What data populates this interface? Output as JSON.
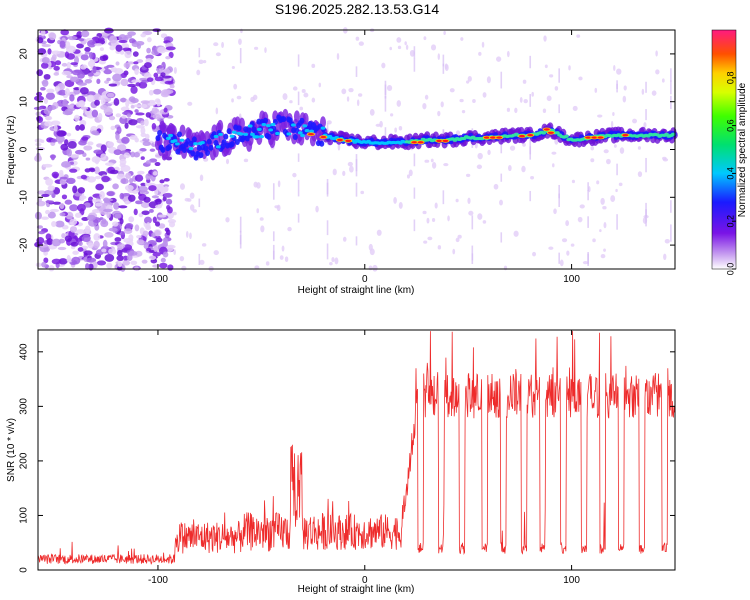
{
  "title": "S196.2025.282.13.53.G14",
  "chart_data": [
    {
      "type": "heatmap",
      "xlabel": "Height of straight line (km)",
      "ylabel": "Frequency (Hz)",
      "xlim": [
        -158,
        150
      ],
      "ylim": [
        -25,
        25
      ],
      "xticks": [
        -100,
        0,
        100
      ],
      "yticks": [
        -20,
        -10,
        0,
        10,
        20
      ],
      "colorbar": {
        "label": "Normalized spectral amplitude",
        "range": [
          0,
          1
        ],
        "ticks": [
          0.0,
          0.2,
          0.4,
          0.6,
          0.8
        ]
      },
      "ridge": {
        "description_points_x": [
          -100,
          -90,
          -80,
          -70,
          -60,
          -50,
          -40,
          -30,
          -20,
          -10,
          0,
          10,
          20,
          30,
          40,
          50,
          60,
          70,
          80,
          90,
          100,
          110,
          120,
          130,
          140,
          150
        ],
        "description_points_y": [
          2,
          1.5,
          0,
          2,
          3,
          4,
          5,
          4,
          3,
          2,
          1.5,
          1.5,
          1.5,
          2,
          2,
          2.5,
          2.5,
          3,
          3,
          4,
          2,
          2.5,
          3,
          3,
          3,
          3
        ]
      },
      "grid": false
    },
    {
      "type": "line",
      "xlabel": "Height of straight line (km)",
      "ylabel": "SNR (10 * v/v)",
      "xlim": [
        -158,
        150
      ],
      "ylim": [
        0,
        440
      ],
      "xticks": [
        -100,
        0,
        100
      ],
      "yticks": [
        0,
        100,
        200,
        300,
        400
      ],
      "series": [
        {
          "color": "#ee2b2b",
          "baseline_segments": [
            {
              "x": [
                -158,
                -92
              ],
              "level": 20,
              "jitter": 15
            },
            {
              "x": [
                -92,
                -60
              ],
              "level": 60,
              "jitter": 50
            },
            {
              "x": [
                -60,
                -20
              ],
              "level": 70,
              "jitter": 60
            },
            {
              "x": [
                -20,
                20
              ],
              "level": 70,
              "jitter": 55
            },
            {
              "x": [
                20,
                150
              ],
              "level": 320,
              "jitter": 70
            }
          ],
          "dropouts_x": [
            27,
            37,
            47,
            58,
            67,
            77,
            86,
            96,
            106,
            115,
            124,
            134,
            145
          ],
          "dropout_level": 30
        }
      ],
      "grid": false
    }
  ]
}
